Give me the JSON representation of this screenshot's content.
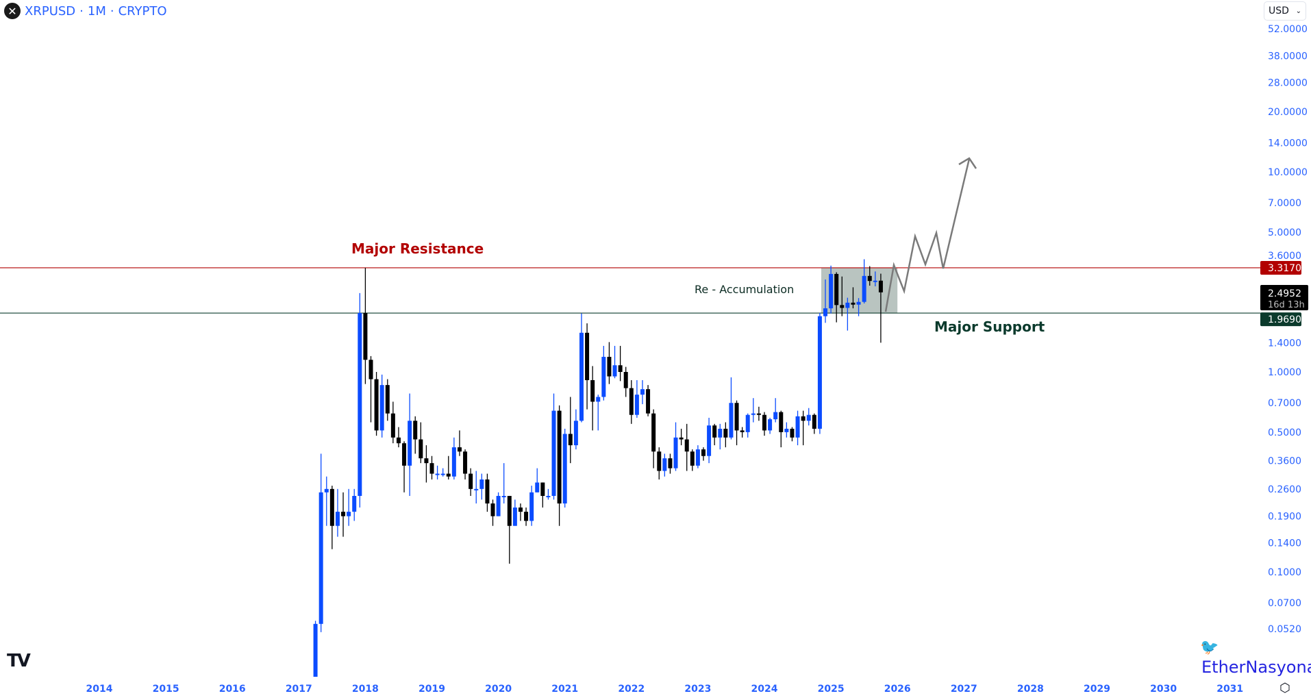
{
  "header": {
    "symbol": "XRPUSD",
    "interval": "1M",
    "exchange": "CRYPTO",
    "separator": "·",
    "logo_icon": "xrp-logo"
  },
  "currency_select": {
    "value": "USD"
  },
  "watermark": {
    "text": "EtherNasyonaL"
  },
  "colors": {
    "up": "#0b4cff",
    "down": "#000000",
    "axis_text": "#2962ff",
    "resistance": "#b20000",
    "support": "#0b3a2c",
    "box": "#b9c4c0",
    "projection": "#7a7a7a"
  },
  "chart_data": {
    "type": "candlestick",
    "scale": "log",
    "x_ticks": [
      "2014",
      "2015",
      "2016",
      "2017",
      "2018",
      "2019",
      "2020",
      "2021",
      "2022",
      "2023",
      "2024",
      "2025",
      "2026",
      "2027",
      "2028",
      "2029",
      "2030",
      "2031"
    ],
    "y_ticks": [
      "52.0000",
      "38.0000",
      "28.0000",
      "20.0000",
      "14.0000",
      "10.0000",
      "7.0000",
      "5.0000",
      "3.6000",
      "1.4000",
      "1.0000",
      "0.7000",
      "0.5000",
      "0.3600",
      "0.2600",
      "0.1900",
      "0.1400",
      "0.1000",
      "0.0700",
      "0.0520"
    ],
    "price_labels": {
      "resistance": "3.3170",
      "last": "2.4952",
      "countdown": "16d 13h",
      "support": "1.9690"
    },
    "levels": {
      "resistance": 3.317,
      "support": 1.969
    },
    "accumulation_box": {
      "from": "2024-12",
      "to": "2026-01",
      "low": 1.969,
      "high": 3.317
    },
    "annotations": {
      "resistance": "Major Resistance",
      "accumulation": "Re - Accumulation",
      "support": "Major Support"
    },
    "candles": [
      [
        "2017-03",
        0.0064,
        0.0235,
        0.006,
        0.022
      ],
      [
        "2017-04",
        0.022,
        0.057,
        0.02,
        0.055
      ],
      [
        "2017-05",
        0.055,
        0.39,
        0.05,
        0.25
      ],
      [
        "2017-06",
        0.25,
        0.3,
        0.17,
        0.26
      ],
      [
        "2017-07",
        0.26,
        0.27,
        0.13,
        0.17
      ],
      [
        "2017-08",
        0.17,
        0.26,
        0.15,
        0.2
      ],
      [
        "2017-09",
        0.2,
        0.25,
        0.15,
        0.19
      ],
      [
        "2017-10",
        0.19,
        0.26,
        0.17,
        0.2
      ],
      [
        "2017-11",
        0.2,
        0.26,
        0.18,
        0.24
      ],
      [
        "2017-12",
        0.24,
        2.48,
        0.21,
        1.97
      ],
      [
        "2018-01",
        1.97,
        3.317,
        0.87,
        1.15
      ],
      [
        "2018-02",
        1.15,
        1.2,
        0.56,
        0.92
      ],
      [
        "2018-03",
        0.92,
        1.0,
        0.48,
        0.51
      ],
      [
        "2018-04",
        0.51,
        0.97,
        0.47,
        0.86
      ],
      [
        "2018-05",
        0.86,
        0.92,
        0.57,
        0.62
      ],
      [
        "2018-06",
        0.62,
        0.71,
        0.44,
        0.47
      ],
      [
        "2018-07",
        0.47,
        0.53,
        0.42,
        0.44
      ],
      [
        "2018-08",
        0.44,
        0.45,
        0.25,
        0.34
      ],
      [
        "2018-09",
        0.34,
        0.78,
        0.24,
        0.57
      ],
      [
        "2018-10",
        0.57,
        0.6,
        0.39,
        0.46
      ],
      [
        "2018-11",
        0.46,
        0.56,
        0.35,
        0.37
      ],
      [
        "2018-12",
        0.37,
        0.43,
        0.28,
        0.35
      ],
      [
        "2019-01",
        0.35,
        0.38,
        0.29,
        0.31
      ],
      [
        "2019-02",
        0.31,
        0.34,
        0.29,
        0.31
      ],
      [
        "2019-03",
        0.31,
        0.33,
        0.3,
        0.31
      ],
      [
        "2019-04",
        0.31,
        0.38,
        0.29,
        0.3
      ],
      [
        "2019-05",
        0.3,
        0.47,
        0.29,
        0.42
      ],
      [
        "2019-06",
        0.42,
        0.51,
        0.38,
        0.4
      ],
      [
        "2019-07",
        0.4,
        0.41,
        0.29,
        0.31
      ],
      [
        "2019-08",
        0.31,
        0.33,
        0.24,
        0.26
      ],
      [
        "2019-09",
        0.26,
        0.32,
        0.22,
        0.26
      ],
      [
        "2019-10",
        0.26,
        0.31,
        0.23,
        0.29
      ],
      [
        "2019-11",
        0.29,
        0.31,
        0.2,
        0.22
      ],
      [
        "2019-12",
        0.22,
        0.23,
        0.17,
        0.19
      ],
      [
        "2020-01",
        0.19,
        0.25,
        0.19,
        0.24
      ],
      [
        "2020-02",
        0.24,
        0.35,
        0.22,
        0.24
      ],
      [
        "2020-03",
        0.24,
        0.24,
        0.11,
        0.17
      ],
      [
        "2020-04",
        0.17,
        0.23,
        0.17,
        0.21
      ],
      [
        "2020-05",
        0.21,
        0.22,
        0.18,
        0.2
      ],
      [
        "2020-06",
        0.2,
        0.21,
        0.17,
        0.18
      ],
      [
        "2020-07",
        0.18,
        0.27,
        0.17,
        0.25
      ],
      [
        "2020-08",
        0.25,
        0.33,
        0.25,
        0.28
      ],
      [
        "2020-09",
        0.28,
        0.28,
        0.21,
        0.24
      ],
      [
        "2020-10",
        0.24,
        0.26,
        0.23,
        0.24
      ],
      [
        "2020-11",
        0.24,
        0.78,
        0.23,
        0.64
      ],
      [
        "2020-12",
        0.64,
        0.68,
        0.17,
        0.22
      ],
      [
        "2021-01",
        0.22,
        0.52,
        0.21,
        0.49
      ],
      [
        "2021-02",
        0.49,
        0.75,
        0.35,
        0.43
      ],
      [
        "2021-03",
        0.43,
        0.65,
        0.41,
        0.57
      ],
      [
        "2021-04",
        0.57,
        1.96,
        0.56,
        1.57
      ],
      [
        "2021-05",
        1.57,
        1.75,
        0.65,
        0.91
      ],
      [
        "2021-06",
        0.91,
        1.07,
        0.51,
        0.71
      ],
      [
        "2021-07",
        0.71,
        0.77,
        0.51,
        0.75
      ],
      [
        "2021-08",
        0.75,
        1.35,
        0.72,
        1.19
      ],
      [
        "2021-09",
        1.19,
        1.41,
        0.87,
        0.95
      ],
      [
        "2021-10",
        0.95,
        1.35,
        0.93,
        1.08
      ],
      [
        "2021-11",
        1.08,
        1.35,
        0.9,
        1.0
      ],
      [
        "2021-12",
        1.0,
        1.06,
        0.75,
        0.83
      ],
      [
        "2022-01",
        0.83,
        0.91,
        0.55,
        0.61
      ],
      [
        "2022-02",
        0.61,
        0.91,
        0.59,
        0.77
      ],
      [
        "2022-03",
        0.77,
        0.91,
        0.69,
        0.82
      ],
      [
        "2022-04",
        0.82,
        0.86,
        0.6,
        0.62
      ],
      [
        "2022-05",
        0.62,
        0.65,
        0.33,
        0.4
      ],
      [
        "2022-06",
        0.4,
        0.42,
        0.29,
        0.32
      ],
      [
        "2022-07",
        0.32,
        0.39,
        0.3,
        0.37
      ],
      [
        "2022-08",
        0.37,
        0.39,
        0.31,
        0.33
      ],
      [
        "2022-09",
        0.33,
        0.56,
        0.32,
        0.47
      ],
      [
        "2022-10",
        0.47,
        0.52,
        0.43,
        0.46
      ],
      [
        "2022-11",
        0.46,
        0.55,
        0.32,
        0.4
      ],
      [
        "2022-12",
        0.4,
        0.41,
        0.32,
        0.34
      ],
      [
        "2023-01",
        0.34,
        0.43,
        0.33,
        0.41
      ],
      [
        "2023-02",
        0.41,
        0.42,
        0.36,
        0.38
      ],
      [
        "2023-03",
        0.38,
        0.59,
        0.35,
        0.54
      ],
      [
        "2023-04",
        0.54,
        0.55,
        0.43,
        0.47
      ],
      [
        "2023-05",
        0.47,
        0.55,
        0.41,
        0.52
      ],
      [
        "2023-06",
        0.52,
        0.56,
        0.42,
        0.47
      ],
      [
        "2023-07",
        0.47,
        0.94,
        0.46,
        0.7
      ],
      [
        "2023-08",
        0.7,
        0.72,
        0.43,
        0.51
      ],
      [
        "2023-09",
        0.51,
        0.53,
        0.47,
        0.5
      ],
      [
        "2023-10",
        0.5,
        0.62,
        0.47,
        0.61
      ],
      [
        "2023-11",
        0.61,
        0.74,
        0.56,
        0.62
      ],
      [
        "2023-12",
        0.62,
        0.67,
        0.57,
        0.61
      ],
      [
        "2024-01",
        0.61,
        0.63,
        0.48,
        0.51
      ],
      [
        "2024-02",
        0.51,
        0.59,
        0.49,
        0.58
      ],
      [
        "2024-03",
        0.58,
        0.74,
        0.56,
        0.63
      ],
      [
        "2024-04",
        0.63,
        0.64,
        0.42,
        0.5
      ],
      [
        "2024-05",
        0.5,
        0.56,
        0.47,
        0.52
      ],
      [
        "2024-06",
        0.52,
        0.53,
        0.45,
        0.47
      ],
      [
        "2024-07",
        0.47,
        0.64,
        0.43,
        0.6
      ],
      [
        "2024-08",
        0.6,
        0.64,
        0.43,
        0.57
      ],
      [
        "2024-09",
        0.57,
        0.66,
        0.54,
        0.61
      ],
      [
        "2024-10",
        0.61,
        0.62,
        0.49,
        0.52
      ],
      [
        "2024-11",
        0.52,
        1.97,
        0.49,
        1.9
      ],
      [
        "2024-12",
        1.9,
        2.9,
        1.76,
        2.08
      ],
      [
        "2025-01",
        2.08,
        3.4,
        1.96,
        3.09
      ],
      [
        "2025-02",
        3.09,
        3.15,
        1.77,
        2.16
      ],
      [
        "2025-03",
        2.16,
        3.0,
        1.9,
        2.09
      ],
      [
        "2025-04",
        2.09,
        2.35,
        1.61,
        2.22
      ],
      [
        "2025-05",
        2.22,
        2.65,
        2.08,
        2.17
      ],
      [
        "2025-06",
        2.17,
        2.34,
        1.9,
        2.24
      ],
      [
        "2025-07",
        2.24,
        3.66,
        2.2,
        3.02
      ],
      [
        "2025-08",
        3.02,
        3.38,
        2.7,
        2.85
      ],
      [
        "2025-09",
        2.85,
        3.18,
        2.68,
        2.86
      ],
      [
        "2025-10",
        2.86,
        3.1,
        1.4,
        2.5
      ]
    ]
  }
}
